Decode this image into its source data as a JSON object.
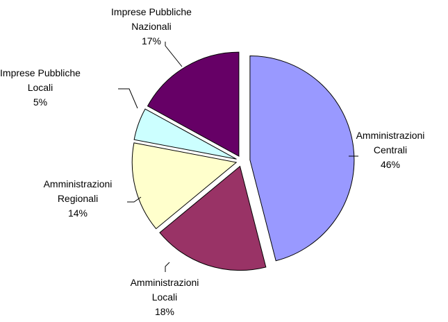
{
  "chart_data": {
    "type": "pie",
    "title": "",
    "slices": [
      {
        "label": [
          "Amministrazioni",
          "Centrali"
        ],
        "value": 46,
        "display": "46%",
        "color": "#9999ff"
      },
      {
        "label": [
          "Amministrazioni",
          "Locali"
        ],
        "value": 18,
        "display": "18%",
        "color": "#993366"
      },
      {
        "label": [
          "Amministrazioni",
          "Regionali"
        ],
        "value": 14,
        "display": "14%",
        "color": "#ffffcc"
      },
      {
        "label": [
          "Imprese Pubbliche",
          "Locali"
        ],
        "value": 5,
        "display": "5%",
        "color": "#ccffff"
      },
      {
        "label": [
          "Imprese Pubbliche",
          "Nazionali"
        ],
        "value": 17,
        "display": "17%",
        "color": "#660066"
      }
    ]
  }
}
